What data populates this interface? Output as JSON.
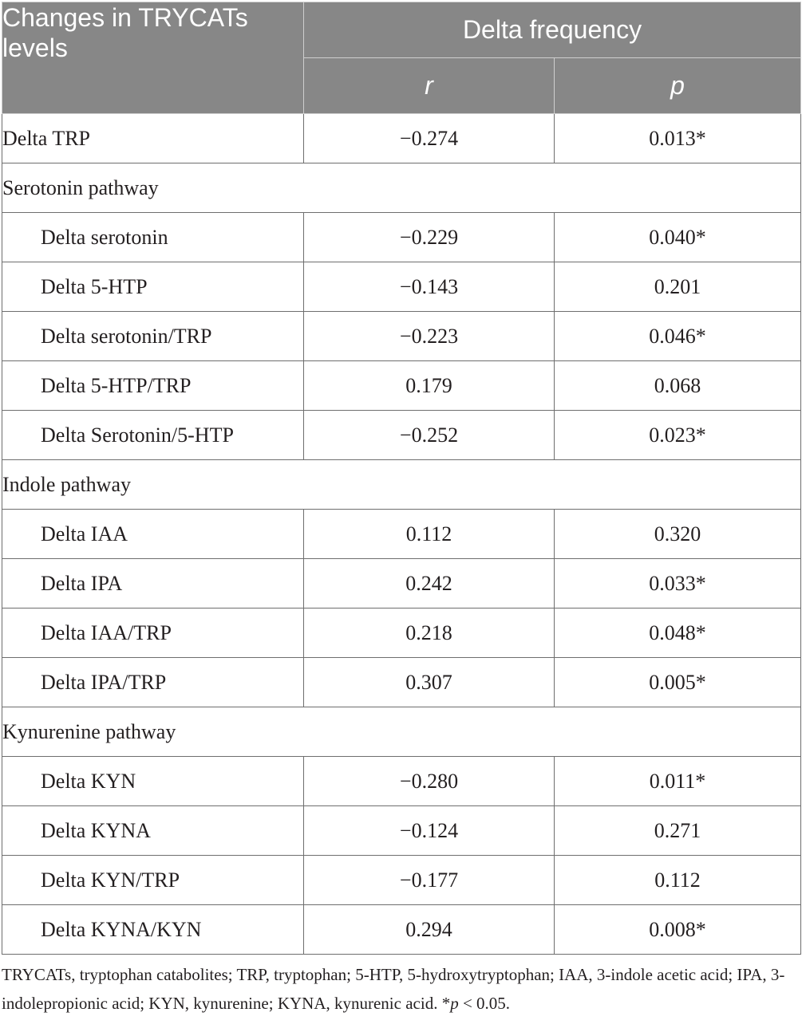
{
  "header": {
    "row_label": "Changes in TRYCATs levels",
    "group_label": "Delta frequency",
    "col_r": "r",
    "col_p": "p"
  },
  "rows": [
    {
      "label": "Delta TRP",
      "r": "−0.274",
      "p": "0.013*"
    }
  ],
  "sections": [
    {
      "title": "Serotonin pathway",
      "rows": [
        {
          "label": "Delta serotonin",
          "r": "−0.229",
          "p": "0.040*"
        },
        {
          "label": "Delta 5-HTP",
          "r": "−0.143",
          "p": "0.201"
        },
        {
          "label": "Delta serotonin/TRP",
          "r": "−0.223",
          "p": "0.046*"
        },
        {
          "label": "Delta 5-HTP/TRP",
          "r": "0.179",
          "p": "0.068"
        },
        {
          "label": "Delta Serotonin/5-HTP",
          "r": "−0.252",
          "p": "0.023*"
        }
      ]
    },
    {
      "title": "Indole pathway",
      "rows": [
        {
          "label": "Delta IAA",
          "r": "0.112",
          "p": "0.320"
        },
        {
          "label": "Delta IPA",
          "r": "0.242",
          "p": "0.033*"
        },
        {
          "label": "Delta IAA/TRP",
          "r": "0.218",
          "p": "0.048*"
        },
        {
          "label": "Delta IPA/TRP",
          "r": "0.307",
          "p": "0.005*"
        }
      ]
    },
    {
      "title": "Kynurenine pathway",
      "rows": [
        {
          "label": "Delta KYN",
          "r": "−0.280",
          "p": "0.011*"
        },
        {
          "label": "Delta KYNA",
          "r": "−0.124",
          "p": "0.271"
        },
        {
          "label": "Delta KYN/TRP",
          "r": "−0.177",
          "p": "0.112"
        },
        {
          "label": "Delta KYNA/KYN",
          "r": "0.294",
          "p": "0.008*"
        }
      ]
    }
  ],
  "footnote": {
    "text": "TRYCATs, tryptophan catabolites; TRP, tryptophan; 5-HTP, 5-hydroxytryptophan; IAA, 3-indole acetic acid; IPA, 3-indolepropionic acid; KYN, kynurenine; KYNA, kynurenic acid. *",
    "sig_symbol": "p",
    "sig_rest": " < 0.05."
  }
}
